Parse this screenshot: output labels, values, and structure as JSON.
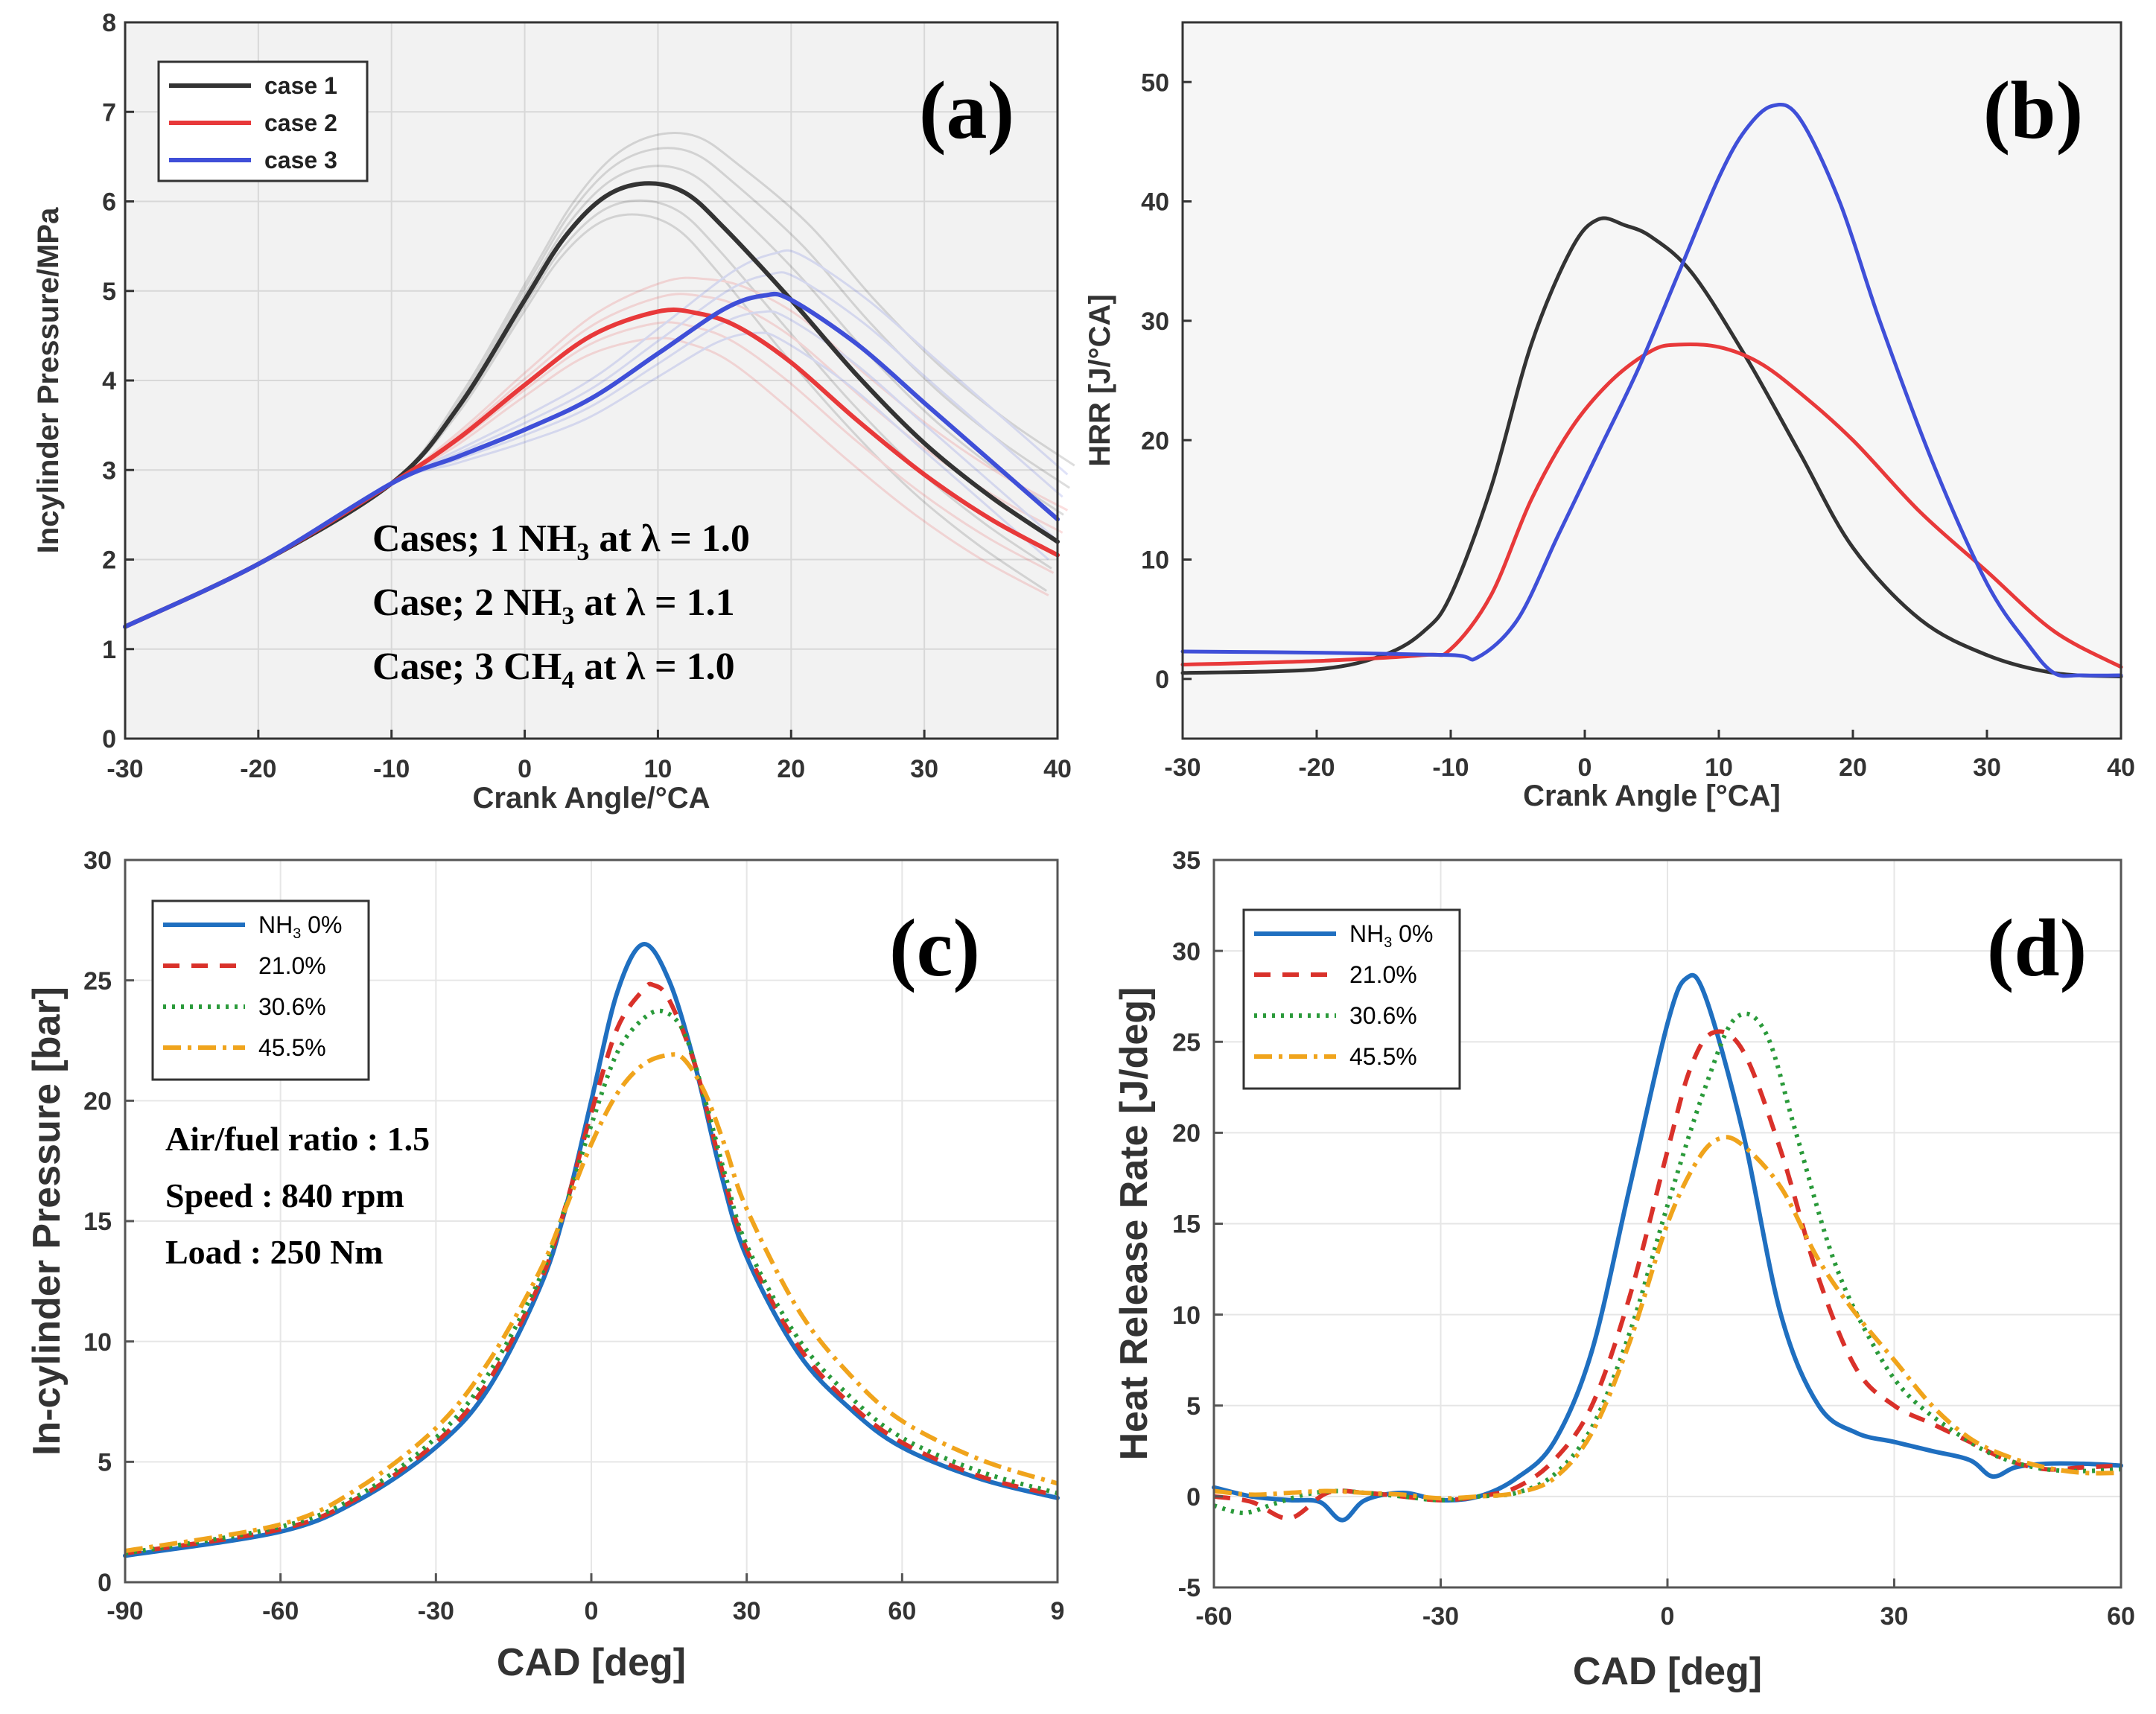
{
  "chart_data": [
    {
      "id": "a",
      "type": "line",
      "panel_label": "(a)",
      "xlabel": "Crank Angle/°CA",
      "ylabel": "Incylinder Pressure/MPa",
      "xlim": [
        -30,
        40
      ],
      "ylim": [
        0,
        8
      ],
      "xticks": [
        "-30",
        "-20",
        "-10",
        "0",
        "10",
        "20",
        "30",
        "40"
      ],
      "yticks": [
        "0",
        "1",
        "2",
        "3",
        "4",
        "5",
        "6",
        "7",
        "8"
      ],
      "legend": [
        "case 1",
        "case 2",
        "case 3"
      ],
      "annotations": [
        {
          "prefix": "Cases; 1 NH",
          "sub": "3",
          "suffix": " at λ = 1.0"
        },
        {
          "prefix": "Case;  2 NH",
          "sub": "3",
          "suffix": " at λ = 1.1"
        },
        {
          "prefix": "Case;  3 CH",
          "sub": "4",
          "suffix": " at λ = 1.0"
        }
      ],
      "series": [
        {
          "name": "case 1",
          "color": "#333333",
          "x": [
            -30,
            -20,
            -10,
            -5,
            0,
            3,
            6,
            9,
            12,
            15,
            20,
            25,
            30,
            35,
            40
          ],
          "y": [
            1.25,
            1.95,
            2.85,
            3.7,
            4.9,
            5.6,
            6.05,
            6.2,
            6.1,
            5.7,
            4.9,
            4.05,
            3.3,
            2.7,
            2.2
          ]
        },
        {
          "name": "case 2",
          "color": "#e8393a",
          "x": [
            -30,
            -20,
            -10,
            -5,
            0,
            5,
            10,
            13,
            16,
            20,
            25,
            30,
            35,
            40
          ],
          "y": [
            1.25,
            1.95,
            2.85,
            3.35,
            3.95,
            4.5,
            4.77,
            4.75,
            4.6,
            4.2,
            3.55,
            2.95,
            2.45,
            2.05
          ]
        },
        {
          "name": "case 3",
          "color": "#3f4fd8",
          "x": [
            -30,
            -20,
            -10,
            -5,
            0,
            5,
            10,
            15,
            18,
            20,
            25,
            30,
            35,
            40
          ],
          "y": [
            1.25,
            1.95,
            2.85,
            3.15,
            3.45,
            3.8,
            4.3,
            4.8,
            4.95,
            4.9,
            4.4,
            3.75,
            3.1,
            2.45
          ]
        }
      ]
    },
    {
      "id": "b",
      "type": "line",
      "panel_label": "(b)",
      "xlabel": "Crank Angle [°CA]",
      "ylabel": "HRR [J/°CA]",
      "xlim": [
        -30,
        40
      ],
      "ylim": [
        -5,
        55
      ],
      "xticks": [
        "-30",
        "-20",
        "-10",
        "0",
        "10",
        "20",
        "30",
        "40"
      ],
      "yticks": [
        "0",
        "10",
        "20",
        "30",
        "40",
        "50"
      ],
      "series": [
        {
          "name": "black",
          "color": "#333333",
          "x": [
            -30,
            -20,
            -15,
            -12,
            -10,
            -7,
            -4,
            -1,
            1,
            3,
            5,
            8,
            12,
            16,
            20,
            25,
            30,
            35,
            40
          ],
          "y": [
            0.5,
            0.8,
            2,
            4,
            7,
            16,
            28,
            36,
            38.5,
            38,
            37,
            34,
            27,
            19,
            11,
            5,
            2,
            0.5,
            0.2
          ]
        },
        {
          "name": "red",
          "color": "#e8393a",
          "x": [
            -30,
            -20,
            -12,
            -10,
            -7,
            -4,
            -1,
            2,
            5,
            7,
            10,
            13,
            16,
            20,
            25,
            30,
            35,
            40
          ],
          "y": [
            1.2,
            1.5,
            2,
            2.5,
            7,
            15,
            21,
            25,
            27.5,
            28,
            27.8,
            26.5,
            24,
            20,
            14,
            9,
            4,
            1
          ]
        },
        {
          "name": "blue",
          "color": "#3f4fd8",
          "x": [
            -30,
            -20,
            -10,
            -8,
            -5,
            -2,
            1,
            4,
            7,
            10,
            12,
            14,
            16,
            19,
            22,
            26,
            30,
            33,
            35,
            37,
            40
          ],
          "y": [
            2.3,
            2.2,
            2.0,
            1.8,
            5,
            12,
            19,
            26,
            34,
            42,
            46,
            48,
            47,
            40,
            30,
            18,
            8,
            3,
            0.5,
            0.3,
            0.3
          ]
        }
      ]
    },
    {
      "id": "c",
      "type": "line",
      "panel_label": "(c)",
      "xlabel": "CAD [deg]",
      "ylabel": "In-cylinder Pressure [bar]",
      "xlim": [
        -90,
        90
      ],
      "ylim": [
        0,
        30
      ],
      "xticks": [
        "-90",
        "-60",
        "-30",
        "0",
        "30",
        "60",
        "9"
      ],
      "yticks": [
        "0",
        "5",
        "10",
        "15",
        "20",
        "25",
        "30"
      ],
      "legend": [
        {
          "prefix": "NH",
          "sub": "3",
          "suffix": " 0%"
        },
        {
          "prefix": "21.0%",
          "sub": "",
          "suffix": ""
        },
        {
          "prefix": "30.6%",
          "sub": "",
          "suffix": ""
        },
        {
          "prefix": "45.5%",
          "sub": "",
          "suffix": ""
        }
      ],
      "annotations": [
        "Air/fuel ratio : 1.5",
        "Speed : 840 rpm",
        "Load : 250 Nm"
      ],
      "series": [
        {
          "name": "NH3 0%",
          "color": "#1f6fc0",
          "dash": "",
          "x": [
            -90,
            -60,
            -45,
            -30,
            -20,
            -10,
            -5,
            0,
            5,
            10,
            15,
            20,
            25,
            30,
            40,
            50,
            60,
            75,
            90
          ],
          "y": [
            1.1,
            2.1,
            3.4,
            5.6,
            8.0,
            12.2,
            15.5,
            20.0,
            24.5,
            26.5,
            25.0,
            21.5,
            17.0,
            13.5,
            9.5,
            7.2,
            5.6,
            4.3,
            3.5
          ]
        },
        {
          "name": "21.0%",
          "color": "#d9312a",
          "dash": "22,16",
          "x": [
            -90,
            -60,
            -45,
            -30,
            -20,
            -10,
            -5,
            0,
            5,
            10,
            12,
            15,
            20,
            25,
            30,
            40,
            50,
            60,
            75,
            90
          ],
          "y": [
            1.2,
            2.2,
            3.5,
            5.8,
            8.3,
            12.4,
            15.6,
            19.5,
            23.0,
            24.6,
            24.8,
            24.2,
            21.5,
            17.3,
            13.8,
            9.8,
            7.4,
            5.8,
            4.4,
            3.6
          ]
        },
        {
          "name": "30.6%",
          "color": "#2a9a3a",
          "dash": "4,8",
          "x": [
            -90,
            -60,
            -45,
            -30,
            -20,
            -10,
            -5,
            0,
            5,
            10,
            14,
            18,
            22,
            26,
            30,
            40,
            50,
            60,
            75,
            90
          ],
          "y": [
            1.2,
            2.3,
            3.6,
            6.0,
            8.6,
            12.6,
            15.6,
            19.0,
            22.0,
            23.4,
            23.7,
            22.8,
            20.0,
            16.8,
            14.0,
            10.1,
            7.7,
            6.0,
            4.6,
            3.7
          ]
        },
        {
          "name": "45.5%",
          "color": "#f0a41c",
          "dash": "24,9,5,9",
          "x": [
            -90,
            -60,
            -45,
            -30,
            -20,
            -10,
            -5,
            0,
            5,
            10,
            15,
            18,
            22,
            26,
            30,
            40,
            50,
            60,
            75,
            90
          ],
          "y": [
            1.3,
            2.4,
            3.9,
            6.4,
            9.1,
            12.9,
            15.5,
            18.2,
            20.3,
            21.5,
            21.9,
            21.7,
            20.3,
            18.0,
            15.5,
            11.3,
            8.6,
            6.7,
            5.1,
            4.1
          ]
        }
      ]
    },
    {
      "id": "d",
      "type": "line",
      "panel_label": "(d)",
      "xlabel": "CAD [deg]",
      "ylabel": "Heat Release Rate [J/deg]",
      "xlim": [
        -60,
        60
      ],
      "ylim": [
        -5,
        35
      ],
      "xticks": [
        "-60",
        "-30",
        "0",
        "30",
        "60"
      ],
      "yticks": [
        "-5",
        "0",
        "5",
        "10",
        "15",
        "20",
        "25",
        "30",
        "35"
      ],
      "legend": [
        {
          "prefix": "NH",
          "sub": "3",
          "suffix": " 0%"
        },
        {
          "prefix": "21.0%",
          "sub": "",
          "suffix": ""
        },
        {
          "prefix": "30.6%",
          "sub": "",
          "suffix": ""
        },
        {
          "prefix": "45.5%",
          "sub": "",
          "suffix": ""
        }
      ],
      "series": [
        {
          "name": "NH3 0%",
          "color": "#1f6fc0",
          "dash": "",
          "x": [
            -60,
            -55,
            -50,
            -46,
            -43,
            -40,
            -35,
            -30,
            -25,
            -20,
            -15,
            -10,
            -5,
            0,
            2.5,
            5,
            10,
            15,
            20,
            25,
            30,
            35,
            40,
            43,
            46,
            50,
            55,
            60
          ],
          "y": [
            0.5,
            0,
            -0.2,
            -0.3,
            -1.3,
            -0.2,
            0.2,
            -0.2,
            0,
            1,
            3,
            8,
            17,
            26,
            28.5,
            27.5,
            20,
            10,
            5,
            3.5,
            3,
            2.5,
            2,
            1.1,
            1.6,
            1.8,
            1.8,
            1.7
          ]
        },
        {
          "name": "21.0%",
          "color": "#d9312a",
          "dash": "22,16",
          "x": [
            -60,
            -55,
            -50,
            -45,
            -40,
            -35,
            -30,
            -25,
            -20,
            -15,
            -10,
            -5,
            0,
            3,
            6,
            10,
            15,
            20,
            25,
            30,
            35,
            40,
            45,
            50,
            55,
            60
          ],
          "y": [
            0,
            -0.3,
            -1.2,
            0.2,
            0.2,
            0,
            -0.2,
            0,
            0.5,
            2,
            5,
            11,
            19,
            23.5,
            25.5,
            24.5,
            19,
            12,
            7,
            5,
            4,
            3,
            2,
            1.5,
            1.6,
            1.7
          ]
        },
        {
          "name": "30.6%",
          "color": "#2a9a3a",
          "dash": "4,8",
          "x": [
            -60,
            -56,
            -52,
            -48,
            -44,
            -40,
            -35,
            -30,
            -25,
            -20,
            -15,
            -10,
            -5,
            0,
            5,
            9,
            13,
            17,
            22,
            27,
            32,
            40,
            45,
            50,
            55,
            60
          ],
          "y": [
            -0.5,
            -0.9,
            -0.4,
            0.1,
            0.3,
            0.2,
            0,
            -0.2,
            0,
            0.2,
            1.2,
            3.8,
            9,
            16,
            22.5,
            26.3,
            25.5,
            20,
            13,
            8.5,
            5.5,
            3,
            2,
            1.5,
            1.4,
            1.5
          ]
        },
        {
          "name": "45.5%",
          "color": "#f0a41c",
          "dash": "24,9,5,9",
          "x": [
            -60,
            -55,
            -50,
            -45,
            -40,
            -35,
            -30,
            -25,
            -20,
            -15,
            -10,
            -5,
            0,
            4,
            7,
            10,
            15,
            20,
            25,
            30,
            35,
            40,
            45,
            50,
            55,
            60
          ],
          "y": [
            0.3,
            0.1,
            0.2,
            0.3,
            0.2,
            0.1,
            -0.1,
            0,
            0.2,
            1,
            3.5,
            8.5,
            15,
            18.5,
            19.7,
            19.3,
            17,
            13,
            10,
            7.5,
            5,
            3.2,
            2.2,
            1.6,
            1.3,
            1.3
          ]
        }
      ]
    }
  ]
}
